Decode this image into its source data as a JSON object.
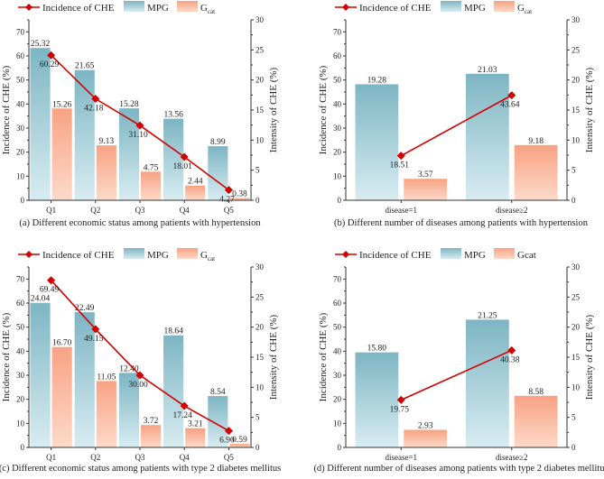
{
  "colors": {
    "line": "#d40000",
    "mpg_top": "#7db5c3",
    "mpg_bottom": "#d8ecf1",
    "gcat_top": "#f8a283",
    "gcat_bottom": "#fdd9c9",
    "axis": "#333333"
  },
  "chart_data": [
    {
      "type": "bar+line",
      "caption": "(a) Different economic status among patients with hypertension",
      "legend": {
        "line": "Incidence of CHE",
        "mpg": "MPG",
        "gcat_main": "G",
        "gcat_sub": "cat"
      },
      "ylabel_left": "Incidence of CHE (%)",
      "ylabel_right": "Intensity of CHE (%)",
      "ylim_left": [
        0,
        75
      ],
      "ylim_right": [
        0,
        30
      ],
      "yticks_left": [
        "0",
        "10",
        "20",
        "30",
        "40",
        "50",
        "60",
        "70"
      ],
      "yticks_right": [
        "0",
        "5",
        "10",
        "15",
        "20",
        "25",
        "30"
      ],
      "categories": [
        "Q1",
        "Q2",
        "Q3",
        "Q4",
        "Q5"
      ],
      "series": [
        {
          "name": "Incidence of CHE",
          "axis": "left",
          "kind": "line",
          "values": [
            60.29,
            42.18,
            31.1,
            18.01,
            4.27
          ],
          "labels": [
            "60.29",
            "42.18",
            "31.10",
            "18.01",
            "4.27"
          ]
        },
        {
          "name": "MPG",
          "axis": "right",
          "kind": "bar",
          "values": [
            25.32,
            21.65,
            15.28,
            13.56,
            8.99
          ],
          "labels": [
            "25.32",
            "21.65",
            "15.28",
            "13.56",
            "8.99"
          ]
        },
        {
          "name": "Gcat",
          "axis": "right",
          "kind": "bar",
          "values": [
            15.26,
            9.13,
            4.75,
            2.44,
            0.38
          ],
          "labels": [
            "15.26",
            "9.13",
            "4.75",
            "2.44",
            "0.38"
          ]
        }
      ]
    },
    {
      "type": "bar+line",
      "caption": "(b) Different number of diseases among patients with hypertension",
      "legend": {
        "line": "Incidence of CHE",
        "mpg": "MPG",
        "gcat_main": "G",
        "gcat_sub": "cat"
      },
      "ylabel_left": "Incidence of CHE (%)",
      "ylabel_right": "Intensity of CHE (%)",
      "ylim_left": [
        0,
        75
      ],
      "ylim_right": [
        0,
        30
      ],
      "yticks_left": [
        "0",
        "10",
        "20",
        "30",
        "40",
        "50",
        "60",
        "70"
      ],
      "yticks_right": [
        "0",
        "5",
        "10",
        "15",
        "20",
        "25",
        "30"
      ],
      "categories": [
        "disease=1",
        "disease≥2"
      ],
      "series": [
        {
          "name": "Incidence of CHE",
          "axis": "left",
          "kind": "line",
          "values": [
            18.51,
            43.64
          ],
          "labels": [
            "18.51",
            "43.64"
          ]
        },
        {
          "name": "MPG",
          "axis": "right",
          "kind": "bar",
          "values": [
            19.28,
            21.03
          ],
          "labels": [
            "19.28",
            "21.03"
          ]
        },
        {
          "name": "Gcat",
          "axis": "right",
          "kind": "bar",
          "values": [
            3.57,
            9.18
          ],
          "labels": [
            "3.57",
            "9.18"
          ]
        }
      ]
    },
    {
      "type": "bar+line",
      "caption": "(c) Different economic status among patients with type 2 diabetes mellitus",
      "legend": {
        "line": "Incidence of CHE",
        "mpg": "MPG",
        "gcat_main": "G",
        "gcat_sub": "cat"
      },
      "ylabel_left": "Incidence of CHE (%)",
      "ylabel_right": "Intensity of CHE (%)",
      "ylim_left": [
        0,
        75
      ],
      "ylim_right": [
        0,
        30
      ],
      "yticks_left": [
        "0",
        "10",
        "20",
        "30",
        "40",
        "50",
        "60",
        "70"
      ],
      "yticks_right": [
        "0",
        "5",
        "10",
        "15",
        "20",
        "25",
        "30"
      ],
      "categories": [
        "Q1",
        "Q2",
        "Q3",
        "Q4",
        "Q5"
      ],
      "series": [
        {
          "name": "Incidence of CHE",
          "axis": "left",
          "kind": "line",
          "values": [
            69.49,
            49.15,
            30.0,
            17.24,
            6.9
          ],
          "labels": [
            "69.49",
            "49.15",
            "30.00",
            "17.24",
            "6.90"
          ]
        },
        {
          "name": "MPG",
          "axis": "right",
          "kind": "bar",
          "values": [
            24.04,
            22.49,
            12.4,
            18.64,
            8.54
          ],
          "labels": [
            "24.04",
            "22.49",
            "12.40",
            "18.64",
            "8.54"
          ]
        },
        {
          "name": "Gcat",
          "axis": "right",
          "kind": "bar",
          "values": [
            16.7,
            11.05,
            3.72,
            3.21,
            0.59
          ],
          "labels": [
            "16.70",
            "11.05",
            "3.72",
            "3.21",
            "0.59"
          ]
        }
      ]
    },
    {
      "type": "bar+line",
      "caption": "(d)  Different number of diseases among patients with type 2 diabetes mellitus",
      "legend": {
        "line": "Incidence of CHE",
        "mpg": "MPG",
        "gcat_main": "Gcat",
        "gcat_sub": ""
      },
      "ylabel_left": "Incidence of CHE (%)",
      "ylabel_right": "Intensity of CHE (%)",
      "ylim_left": [
        0,
        75
      ],
      "ylim_right": [
        0,
        30
      ],
      "yticks_left": [
        "0",
        "10",
        "20",
        "30",
        "40",
        "50",
        "60",
        "70"
      ],
      "yticks_right": [
        "0",
        "5",
        "10",
        "15",
        "20",
        "25",
        "30"
      ],
      "categories": [
        "disease=1",
        "disease≥2"
      ],
      "series": [
        {
          "name": "Incidence of CHE",
          "axis": "left",
          "kind": "line",
          "values": [
            19.75,
            40.38
          ],
          "labels": [
            "19.75",
            "40.38"
          ]
        },
        {
          "name": "MPG",
          "axis": "right",
          "kind": "bar",
          "values": [
            15.8,
            21.25
          ],
          "labels": [
            "15.80",
            "21.25"
          ]
        },
        {
          "name": "Gcat",
          "axis": "right",
          "kind": "bar",
          "values": [
            2.93,
            8.58
          ],
          "labels": [
            "2.93",
            "8.58"
          ]
        }
      ]
    }
  ]
}
